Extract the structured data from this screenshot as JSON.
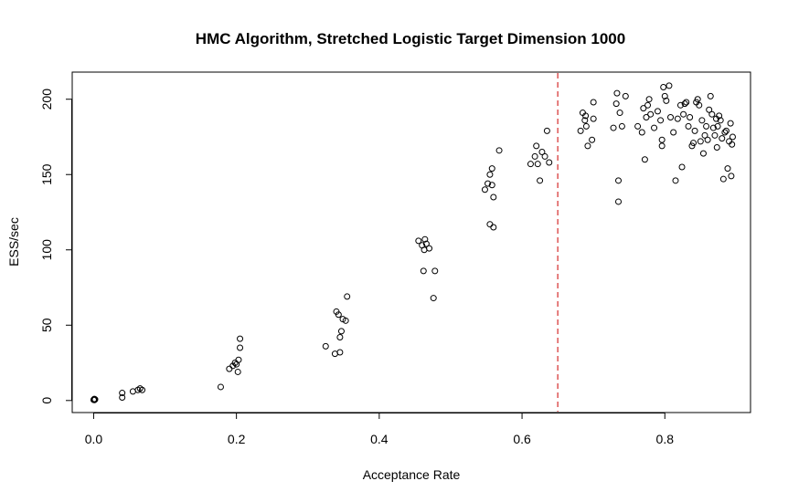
{
  "chart_data": {
    "type": "scatter",
    "title": "HMC Algorithm, Stretched Logistic Target Dimension 1000",
    "xlabel": "Acceptance Rate",
    "ylabel": "ESS/sec",
    "xlim": [
      -0.03,
      0.92
    ],
    "ylim": [
      -8,
      218
    ],
    "x_ticks": [
      "0.0",
      "0.2",
      "0.4",
      "0.6",
      "0.8"
    ],
    "y_ticks": [
      "0",
      "50",
      "100",
      "150",
      "200"
    ],
    "grid": false,
    "legend": "none",
    "reference_line": {
      "x": 0.65,
      "orientation": "vertical",
      "style": "dashed",
      "color": "#cc0000"
    },
    "marker_color": "#000000",
    "points": [
      [
        0.0,
        0.5
      ],
      [
        0.001,
        1.0
      ],
      [
        0.001,
        0.3
      ],
      [
        0.002,
        0.7
      ],
      [
        0.04,
        2
      ],
      [
        0.04,
        5
      ],
      [
        0.055,
        6
      ],
      [
        0.062,
        7
      ],
      [
        0.065,
        8
      ],
      [
        0.068,
        7
      ],
      [
        0.178,
        9
      ],
      [
        0.19,
        21
      ],
      [
        0.195,
        23
      ],
      [
        0.198,
        25
      ],
      [
        0.2,
        24
      ],
      [
        0.202,
        19
      ],
      [
        0.203,
        27
      ],
      [
        0.205,
        35
      ],
      [
        0.205,
        41
      ],
      [
        0.325,
        36
      ],
      [
        0.338,
        31
      ],
      [
        0.34,
        59
      ],
      [
        0.343,
        57
      ],
      [
        0.345,
        32
      ],
      [
        0.345,
        42
      ],
      [
        0.347,
        46
      ],
      [
        0.349,
        54
      ],
      [
        0.353,
        53
      ],
      [
        0.355,
        69
      ],
      [
        0.455,
        106
      ],
      [
        0.46,
        103
      ],
      [
        0.462,
        86
      ],
      [
        0.463,
        100
      ],
      [
        0.464,
        107
      ],
      [
        0.466,
        104
      ],
      [
        0.47,
        101
      ],
      [
        0.476,
        68
      ],
      [
        0.478,
        86
      ],
      [
        0.548,
        140
      ],
      [
        0.552,
        144
      ],
      [
        0.555,
        150
      ],
      [
        0.555,
        117
      ],
      [
        0.558,
        154
      ],
      [
        0.558,
        143
      ],
      [
        0.56,
        135
      ],
      [
        0.56,
        115
      ],
      [
        0.568,
        166
      ],
      [
        0.612,
        157
      ],
      [
        0.618,
        162
      ],
      [
        0.62,
        169
      ],
      [
        0.622,
        157
      ],
      [
        0.625,
        146
      ],
      [
        0.628,
        165
      ],
      [
        0.632,
        162
      ],
      [
        0.635,
        179
      ],
      [
        0.638,
        158
      ],
      [
        0.682,
        179
      ],
      [
        0.685,
        191
      ],
      [
        0.688,
        186
      ],
      [
        0.689,
        189
      ],
      [
        0.69,
        182
      ],
      [
        0.692,
        169
      ],
      [
        0.698,
        173
      ],
      [
        0.7,
        198
      ],
      [
        0.7,
        187
      ],
      [
        0.728,
        181
      ],
      [
        0.732,
        197
      ],
      [
        0.733,
        204
      ],
      [
        0.735,
        146
      ],
      [
        0.735,
        132
      ],
      [
        0.737,
        191
      ],
      [
        0.74,
        182
      ],
      [
        0.745,
        202
      ],
      [
        0.762,
        182
      ],
      [
        0.768,
        178
      ],
      [
        0.77,
        194
      ],
      [
        0.772,
        160
      ],
      [
        0.774,
        188
      ],
      [
        0.776,
        196
      ],
      [
        0.778,
        200
      ],
      [
        0.78,
        190
      ],
      [
        0.785,
        181
      ],
      [
        0.79,
        192
      ],
      [
        0.794,
        186
      ],
      [
        0.796,
        173
      ],
      [
        0.796,
        169
      ],
      [
        0.798,
        208
      ],
      [
        0.8,
        202
      ],
      [
        0.802,
        199
      ],
      [
        0.806,
        209
      ],
      [
        0.808,
        188
      ],
      [
        0.812,
        178
      ],
      [
        0.815,
        146
      ],
      [
        0.818,
        187
      ],
      [
        0.822,
        196
      ],
      [
        0.824,
        155
      ],
      [
        0.826,
        190
      ],
      [
        0.828,
        197
      ],
      [
        0.83,
        198
      ],
      [
        0.833,
        182
      ],
      [
        0.835,
        188
      ],
      [
        0.838,
        169
      ],
      [
        0.84,
        171
      ],
      [
        0.842,
        179
      ],
      [
        0.844,
        198
      ],
      [
        0.846,
        200
      ],
      [
        0.848,
        196
      ],
      [
        0.85,
        172
      ],
      [
        0.852,
        186
      ],
      [
        0.854,
        164
      ],
      [
        0.856,
        176
      ],
      [
        0.858,
        182
      ],
      [
        0.86,
        173
      ],
      [
        0.862,
        193
      ],
      [
        0.864,
        202
      ],
      [
        0.866,
        190
      ],
      [
        0.868,
        181
      ],
      [
        0.87,
        176
      ],
      [
        0.872,
        187
      ],
      [
        0.873,
        168
      ],
      [
        0.874,
        182
      ],
      [
        0.876,
        189
      ],
      [
        0.878,
        186
      ],
      [
        0.88,
        174
      ],
      [
        0.882,
        147
      ],
      [
        0.884,
        178
      ],
      [
        0.886,
        179
      ],
      [
        0.888,
        154
      ],
      [
        0.89,
        172
      ],
      [
        0.892,
        184
      ],
      [
        0.893,
        149
      ],
      [
        0.894,
        170
      ],
      [
        0.895,
        175
      ]
    ]
  }
}
